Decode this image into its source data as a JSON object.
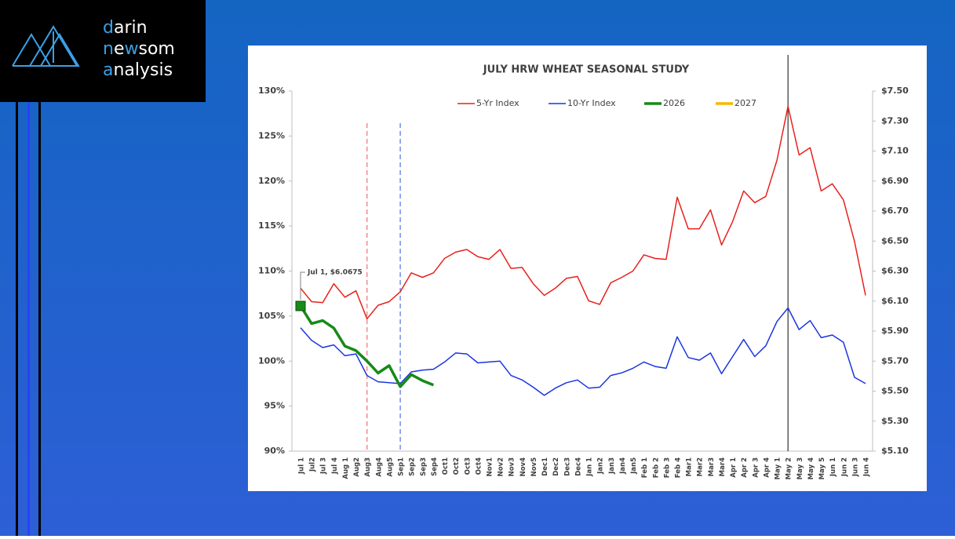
{
  "logo": {
    "lines": [
      [
        "d",
        "arin"
      ],
      [
        "n",
        "e",
        "w",
        "som"
      ],
      [
        "a",
        "nalysis"
      ]
    ]
  },
  "chart_data": {
    "type": "line",
    "title": "JULY HRW WHEAT SEASONAL STUDY",
    "categories": [
      "Jul 1",
      "Jul2",
      "Jul 3",
      "Jul 4",
      "Aug 1",
      "Aug2",
      "Aug3",
      "Aug4",
      "Aug5",
      "Sep1",
      "Sep2",
      "Sep3",
      "Sep4",
      "Oct1",
      "Oct2",
      "Oct3",
      "Oct4",
      "Nov1",
      "Nov2",
      "Nov3",
      "Nov4",
      "Nov5",
      "Dec1",
      "Dec2",
      "Dec3",
      "Dec4",
      "Jan 1",
      "Jan2",
      "Jan3",
      "Jan4",
      "Jan5",
      "Feb 1",
      "Feb 2",
      "Feb 3",
      "Feb 4",
      "Mar1",
      "Mar2",
      "Mar3",
      "Mar4",
      "Apr 1",
      "Apr 2",
      "Apr 3",
      "Apr 4",
      "May 1",
      "May 2",
      "May 3",
      "May 4",
      "May 5",
      "Jun 1",
      "Jun 2",
      "Jun 3",
      "Jun 4"
    ],
    "series": [
      {
        "name": "5-Yr Index",
        "color": "#e8201c",
        "values": [
          108.1,
          106.6,
          106.5,
          108.6,
          107.1,
          107.8,
          104.7,
          106.2,
          106.6,
          107.7,
          109.8,
          109.3,
          109.8,
          111.4,
          112.1,
          112.4,
          111.6,
          111.3,
          112.4,
          110.3,
          110.4,
          108.6,
          107.3,
          108.1,
          109.2,
          109.4,
          106.7,
          106.3,
          108.7,
          109.3,
          110.0,
          111.8,
          111.4,
          111.3,
          118.2,
          114.7,
          114.7,
          116.8,
          112.9,
          115.5,
          118.9,
          117.6,
          118.3,
          122.3,
          128.3,
          122.9,
          123.7,
          118.9,
          119.7,
          117.9,
          113.3,
          107.3
        ]
      },
      {
        "name": "10-Yr Index",
        "color": "#1a35e0",
        "values": [
          103.7,
          102.3,
          101.5,
          101.8,
          100.6,
          100.8,
          98.4,
          97.7,
          97.6,
          97.5,
          98.8,
          99.0,
          99.1,
          99.9,
          100.9,
          100.8,
          99.8,
          99.9,
          100.0,
          98.4,
          97.9,
          97.1,
          96.2,
          97.0,
          97.6,
          97.9,
          97.0,
          97.1,
          98.4,
          98.7,
          99.2,
          99.9,
          99.4,
          99.2,
          102.7,
          100.4,
          100.1,
          100.9,
          98.6,
          100.5,
          102.4,
          100.5,
          101.7,
          104.4,
          105.9,
          103.5,
          104.5,
          102.6,
          102.9,
          102.1,
          98.2,
          97.5
        ]
      },
      {
        "name": "2026",
        "color": "#178a17",
        "axis": "y2",
        "width": 3.5,
        "values": [
          6.0675,
          5.95,
          5.97,
          5.92,
          5.8,
          5.77,
          5.7,
          5.62,
          5.67,
          5.53,
          5.61,
          5.57,
          5.54,
          null,
          null,
          null,
          null,
          null,
          null,
          null,
          null,
          null,
          null,
          null,
          null,
          null,
          null,
          null,
          null,
          null,
          null,
          null,
          null,
          null,
          null,
          null,
          null,
          null,
          null,
          null,
          null,
          null,
          null,
          null,
          null,
          null,
          null,
          null,
          null,
          null,
          null,
          null
        ]
      },
      {
        "name": "2027",
        "color": "#f5b800",
        "axis": "y2",
        "width": 3.5,
        "values": [
          null,
          null,
          null,
          null,
          null,
          null,
          null,
          null,
          null,
          null,
          null,
          null,
          null,
          null,
          null,
          null,
          null,
          null,
          null,
          null,
          null,
          null,
          null,
          null,
          null,
          null,
          null,
          null,
          null,
          null,
          null,
          null,
          null,
          null,
          null,
          null,
          null,
          null,
          null,
          null,
          null,
          null,
          null,
          null,
          null,
          null,
          null,
          null,
          null,
          null,
          null,
          null
        ]
      }
    ],
    "annotation": {
      "text": "Jul 1, $6.0675",
      "series": 2,
      "index": 0
    },
    "reference_lines": [
      {
        "category": "Aug3",
        "color": "#f07070",
        "style": "dashed"
      },
      {
        "category": "Sep1",
        "color": "#5070e0",
        "style": "dashed"
      },
      {
        "category": "May 2",
        "color": "#333333",
        "style": "solid"
      }
    ],
    "ylim": [
      90,
      130
    ],
    "yticks": [
      {
        "value": 130,
        "label": "130%"
      },
      {
        "value": 125,
        "label": "125%"
      },
      {
        "value": 120,
        "label": "120%"
      },
      {
        "value": 115,
        "label": "115%"
      },
      {
        "value": 110,
        "label": "110%"
      },
      {
        "value": 105,
        "label": "105%"
      },
      {
        "value": 100,
        "label": "100%"
      },
      {
        "value": 95,
        "label": "95%"
      },
      {
        "value": 90,
        "label": "90%"
      }
    ],
    "y2lim": [
      5.1,
      7.5
    ],
    "y2ticks": [
      {
        "value": 7.5,
        "label": "$7.50"
      },
      {
        "value": 7.3,
        "label": "$7.30"
      },
      {
        "value": 7.1,
        "label": "$7.10"
      },
      {
        "value": 6.9,
        "label": "$6.90"
      },
      {
        "value": 6.7,
        "label": "$6.70"
      },
      {
        "value": 6.5,
        "label": "$6.50"
      },
      {
        "value": 6.3,
        "label": "$6.30"
      },
      {
        "value": 6.1,
        "label": "$6.10"
      },
      {
        "value": 5.9,
        "label": "$5.90"
      },
      {
        "value": 5.7,
        "label": "$5.70"
      },
      {
        "value": 5.5,
        "label": "$5.50"
      },
      {
        "value": 5.3,
        "label": "$5.30"
      },
      {
        "value": 5.1,
        "label": "$5.10"
      }
    ],
    "legend": "top",
    "grid": false
  }
}
